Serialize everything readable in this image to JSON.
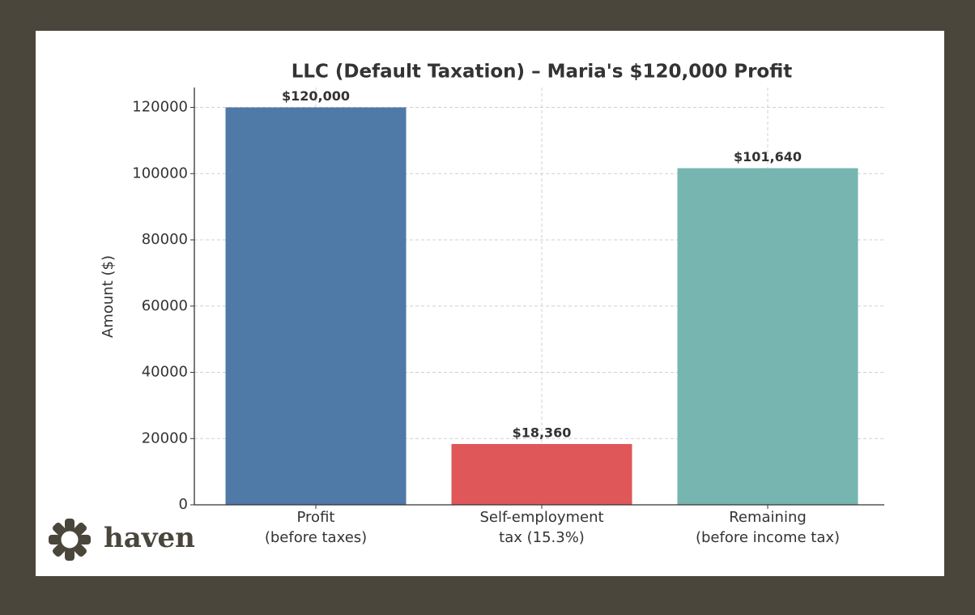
{
  "chart_data": {
    "type": "bar",
    "title": "LLC (Default Taxation) – Maria's $120,000 Profit",
    "ylabel": "Amount ($)",
    "categories": [
      "Profit\n(before taxes)",
      "Self-employment\ntax (15.3%)",
      "Remaining\n(before income tax)"
    ],
    "values": [
      120000,
      18360,
      101640
    ],
    "value_labels": [
      "$120,000",
      "$18,360",
      "$101,640"
    ],
    "colors": [
      "#4f79a7",
      "#e05759",
      "#76b5b0"
    ],
    "ylim": [
      0,
      126000
    ],
    "yticks": [
      0,
      20000,
      40000,
      60000,
      80000,
      100000,
      120000
    ],
    "grid": true
  },
  "logo": "haven"
}
